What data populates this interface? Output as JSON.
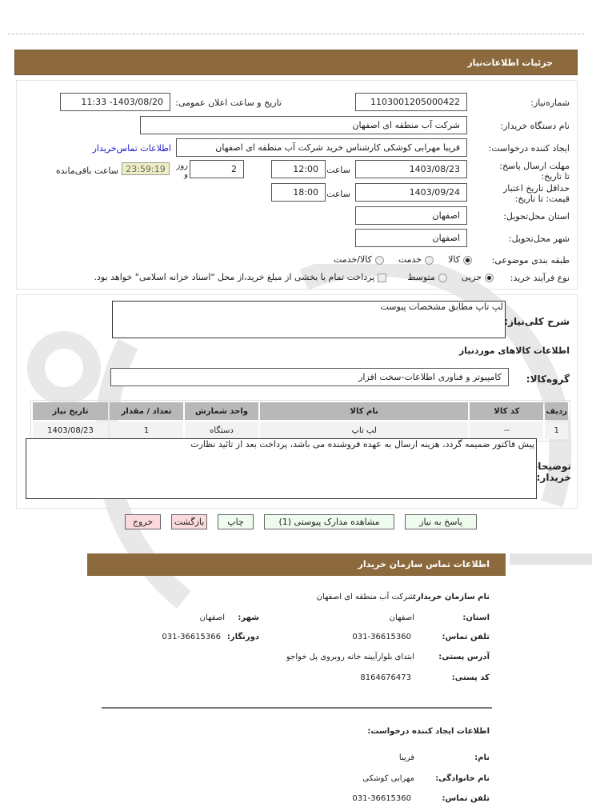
{
  "header": {
    "title": "جزئیات اطلاعات‌نیاز"
  },
  "form": {
    "need_number_label": "شماره‌نیاز:",
    "need_number": "1103001205000422",
    "announce_label": "تاریخ و ساعت اعلان عمومی:",
    "announce_value": "1403/08/20- 11:33",
    "buyer_org_label": "نام دستگاه خریدار:",
    "buyer_org": "شرکت آب منطقه ای اصفهان",
    "creator_label": "ایجاد کننده درخواست:",
    "creator": "فریبا مهرابی کوشکی کارشناس خرید شرکت آب منطقه ای اصفهان",
    "contact_link": "اطلاعات تماس‌خریدار",
    "deadline_label": "مهلت ارسال پاسخ: تا تاریخ:",
    "deadline_date": "1403/08/23",
    "time_label": "ساعت",
    "deadline_time": "12:00",
    "days": "2",
    "days_label": "روز و",
    "countdown": "23:59:19",
    "remaining_label": "ساعت باقی‌مانده",
    "validity_label": "حداقل تاریخ اعتبار قیمت: تا تاریخ:",
    "validity_date": "1403/09/24",
    "validity_time": "18:00",
    "province_label": "استان محل‌تحویل:",
    "province": "اصفهان",
    "city_label": "شهر محل‌تحویل:",
    "city": "اصفهان",
    "category_label": "طبقه بندی موضوعی:",
    "category_options": [
      "کالا",
      "خدمت",
      "کالا/خدمت"
    ],
    "category_selected": "کالا",
    "process_label": "نوع فرآیند خرید:",
    "process_options": [
      "جزیی",
      "متوسط"
    ],
    "process_selected": "جزیی",
    "payment_note": "پرداخت تمام یا بخشی از مبلغ خرید،از محل \"اسناد خزانه اسلامی\" خواهد بود."
  },
  "details": {
    "desc_label": "شرح کلی‌نیاز:",
    "desc": "لپ تاپ مطابق مشخصات پیوست",
    "goods_title": "اطلاعات کالاهای موردنیاز",
    "group_label": "گروه‌کالا:",
    "group": "کامپیوتر و فناوری اطلاعات-سخت افزار",
    "table": {
      "headers": [
        "ردیف",
        "کد کالا",
        "نام کالا",
        "واحد شمارش",
        "تعداد / مقدار",
        "تاریخ نیاز"
      ],
      "rows": [
        [
          "1",
          "--",
          "لپ تاپ",
          "دستگاه",
          "1",
          "1403/08/23"
        ]
      ]
    },
    "notes_label": "توضیحات خریدار:",
    "notes": "پیش فاکتور ضمیمه گردد، هزینه ارسال به عهده فروشنده می باشد، پرداخت بعد از تائید نظارت"
  },
  "buttons": {
    "reply": "پاسخ به نیاز",
    "docs": "مشاهده مدارک پیوستی (1)",
    "print": "چاپ",
    "back": "بازگشت",
    "exit": "خروج"
  },
  "contact": {
    "title": "اطلاعات تماس سازمان خریدار",
    "org_label": "نام سازمان خریدار:",
    "org": "شرکت آب منطقه ای اصفهان",
    "province_label": "استان:",
    "province": "اصفهان",
    "city_label": "شهر:",
    "city": "اصفهان",
    "phone_label": "تلفن تماس:",
    "phone": "031-36615360",
    "fax_label": "دورنگار:",
    "fax": "031-36615366",
    "address_label": "آدرس پستی:",
    "address": "ابتدای بلوارآیینه خانه روبروی پل خواجو",
    "postal_label": "کد پستی:",
    "postal": "8164676473",
    "creator_title": "اطلاعات ایجاد کننده درخواست:",
    "name_label": "نام:",
    "name": "فریبا",
    "family_label": "نام خانوادگی:",
    "family": "مهرابی کوشکی",
    "creator_phone_label": "تلفن تماس:",
    "creator_phone": "031-36615360"
  },
  "colors": {
    "header": "#8c6a3e",
    "link": "#1a1acc",
    "countdown_bg": "#eeeec4",
    "green_btn": "#eefbee",
    "red_btn": "#fbd9dc"
  }
}
